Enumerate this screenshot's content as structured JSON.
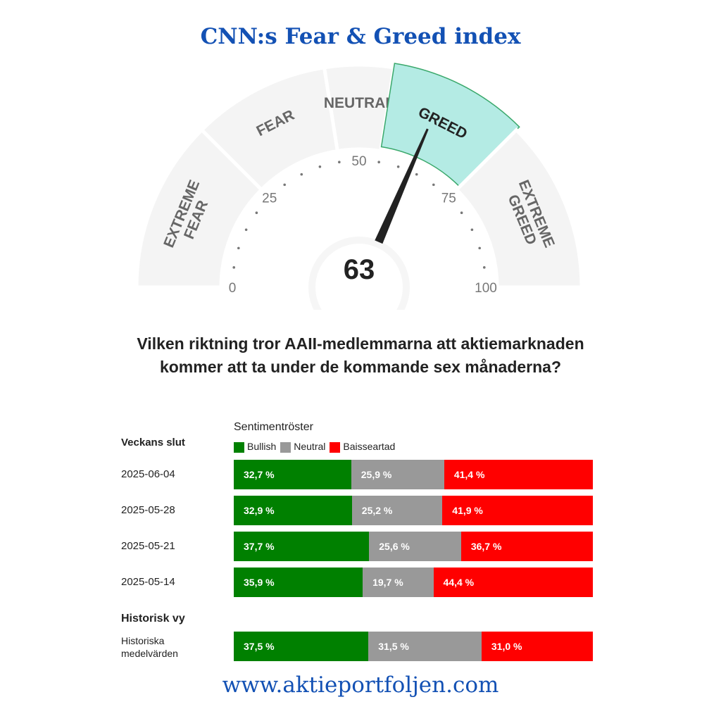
{
  "title": "CNN:s Fear & Greed index",
  "gauge": {
    "value": 63,
    "value_label": "63",
    "zones": [
      {
        "name": "extreme-fear",
        "lines": [
          "EXTREME",
          "FEAR"
        ],
        "from": 0,
        "to": 25
      },
      {
        "name": "fear",
        "lines": [
          "FEAR"
        ],
        "from": 25,
        "to": 45
      },
      {
        "name": "neutral",
        "lines": [
          "NEUTRAL"
        ],
        "from": 45,
        "to": 55
      },
      {
        "name": "greed",
        "lines": [
          "GREED"
        ],
        "from": 55,
        "to": 75,
        "active": true
      },
      {
        "name": "extreme-greed",
        "lines": [
          "EXTREME",
          "GREED"
        ],
        "from": 75,
        "to": 100
      }
    ],
    "ticks": [
      "0",
      "25",
      "50",
      "75",
      "100"
    ],
    "colors": {
      "zone": "#f4f4f4",
      "active": "#b4ebe4",
      "active_border": "#3aa86b",
      "needle": "#222222"
    }
  },
  "question": "Vilken riktning tror AAII-medlemmarna att aktiemarknaden kommer att ta under de kommande sex månaderna?",
  "chart_data": {
    "type": "bar",
    "stacked": true,
    "orientation": "horizontal",
    "title": "Sentimentröster",
    "row_header": "Veckans slut",
    "historical_header": "Historisk vy",
    "legend": [
      "Bullish",
      "Neutral",
      "Baisseartad"
    ],
    "colors": [
      "#008000",
      "#999999",
      "#ff0000"
    ],
    "rows": [
      {
        "label": "2025-06-04",
        "values": [
          32.7,
          25.9,
          41.4
        ],
        "texts": [
          "32,7 %",
          "25,9 %",
          "41,4 %"
        ]
      },
      {
        "label": "2025-05-28",
        "values": [
          32.9,
          25.2,
          41.9
        ],
        "texts": [
          "32,9 %",
          "25,2 %",
          "41,9 %"
        ]
      },
      {
        "label": "2025-05-21",
        "values": [
          37.7,
          25.6,
          36.7
        ],
        "texts": [
          "37,7 %",
          "25,6 %",
          "36,7 %"
        ]
      },
      {
        "label": "2025-05-14",
        "values": [
          35.9,
          19.7,
          44.4
        ],
        "texts": [
          "35,9 %",
          "19,7 %",
          "44,4 %"
        ]
      }
    ],
    "historical": {
      "label_lines": [
        "Historiska",
        "medelvärden"
      ],
      "values": [
        37.5,
        31.5,
        31.0
      ],
      "texts": [
        "37,5 %",
        "31,5 %",
        "31,0 %"
      ]
    }
  },
  "footer": "www.aktieportfoljen.com"
}
